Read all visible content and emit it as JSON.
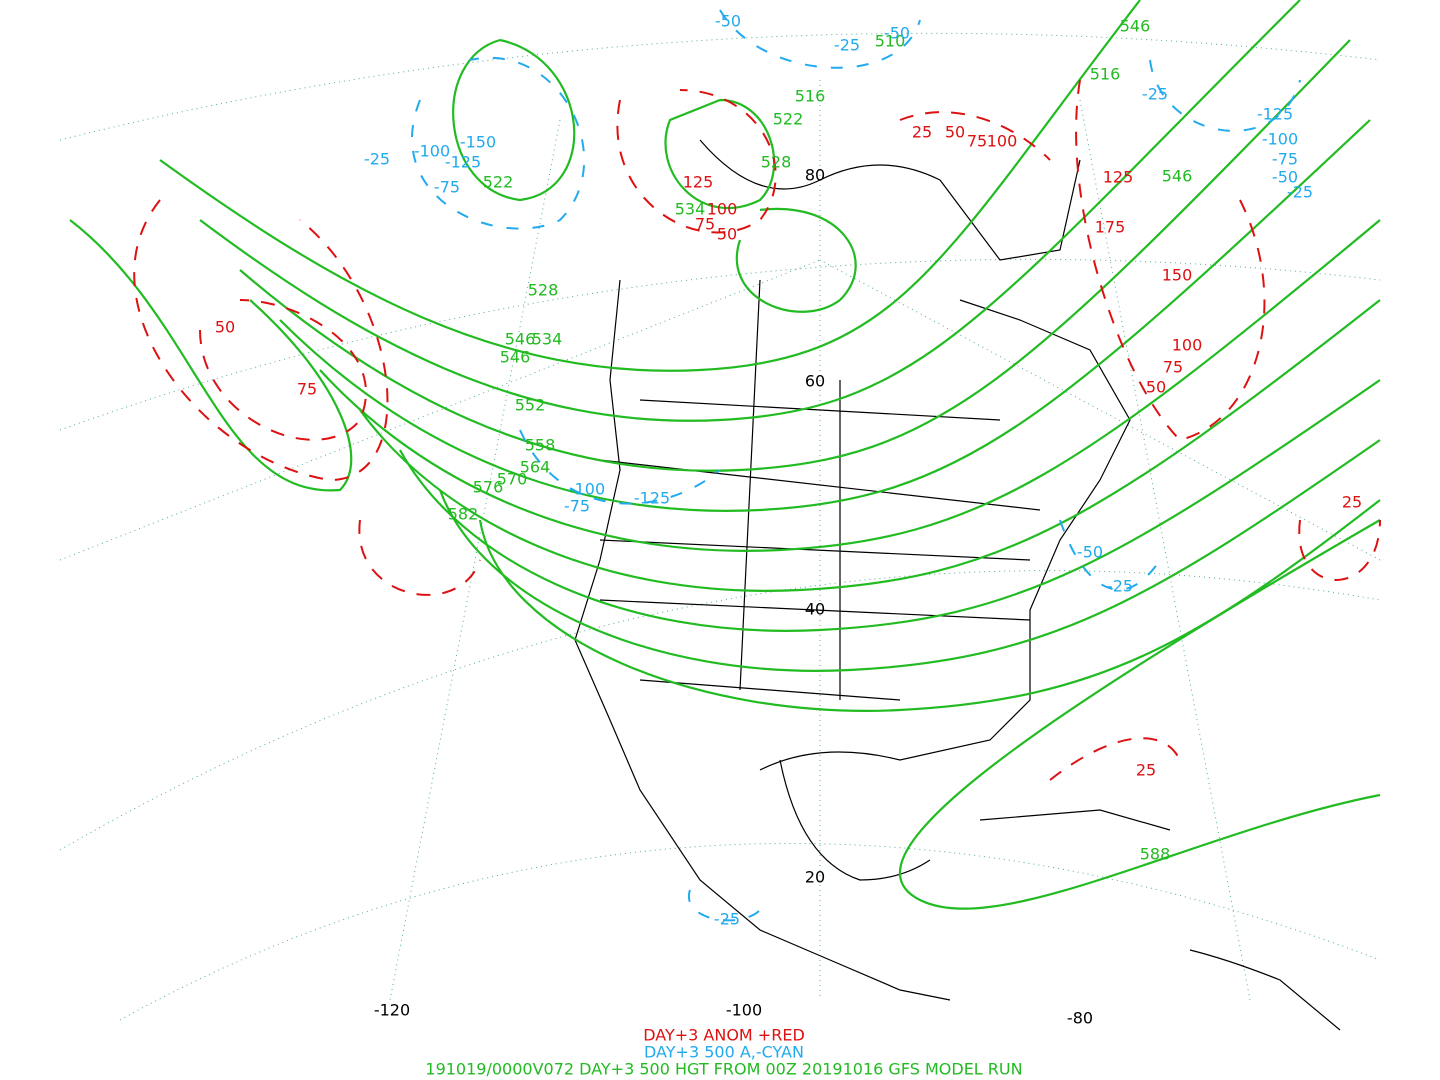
{
  "height_labels": [
    "516",
    "522",
    "528",
    "522",
    "528",
    "546",
    "534",
    "546",
    "552",
    "558",
    "564",
    "570",
    "576",
    "582",
    "588",
    "546",
    "516",
    "546",
    "510",
    "534"
  ],
  "positive_anomaly_labels": [
    "50",
    "75",
    "125",
    "100",
    "75",
    "50",
    "25",
    "50",
    "75",
    "100",
    "125",
    "175",
    "150",
    "100",
    "75",
    "50",
    "25",
    "25"
  ],
  "negative_anomaly_labels": [
    "-50",
    "-25",
    "-50",
    "-25",
    "-100",
    "-150",
    "-125",
    "-75",
    "-25",
    "-125",
    "-100",
    "-75",
    "-50",
    "-25",
    "-100",
    "-75",
    "-125",
    "-50",
    "-25",
    "-25"
  ],
  "longitude_labels": [
    "-120",
    "-100",
    "-80"
  ],
  "latitude_labels": [
    "80",
    "60",
    "40",
    "20"
  ],
  "footer": {
    "line1": "DAY+3 ANOM +RED",
    "line2": "DAY+3 500 A,-CYAN",
    "line3": "191019/0000V072 DAY+3 500 HGT FROM 00Z 20191016 GFS MODEL RUN"
  }
}
